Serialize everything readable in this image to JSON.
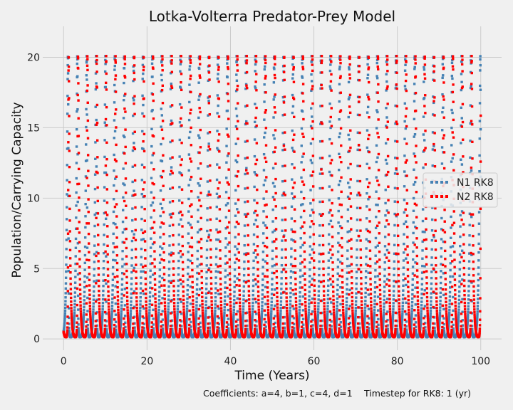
{
  "chart_data": {
    "type": "scatter",
    "title": "Lotka-Volterra Predator-Prey Model",
    "xlabel": "Time (Years)",
    "ylabel": "Population/Carrying Capacity",
    "xlim": [
      -5,
      105
    ],
    "ylim": [
      -0.8,
      22.2
    ],
    "xticks": [
      0,
      20,
      40,
      60,
      80,
      100
    ],
    "yticks": [
      0,
      5,
      10,
      15,
      20
    ],
    "grid": true,
    "legend_position": "right",
    "coefficients": {
      "a": 4,
      "b": 1,
      "c": 4,
      "d": 1
    },
    "timestep_years": 1,
    "model": {
      "N1_initial": 0.5,
      "N2_initial": 0.5,
      "t_start": 0,
      "t_end": 100,
      "samples_per_year": 40
    },
    "series": [
      {
        "name": "N1 RK8",
        "color": "#4682b4"
      },
      {
        "name": "N2 RK8",
        "color": "#ff0000"
      }
    ]
  },
  "footer": {
    "coefficients_text": "Coefficients: a=4, b=1, c=4, d=1",
    "timestep_text": "Timestep for RK8: 1 (yr)"
  }
}
